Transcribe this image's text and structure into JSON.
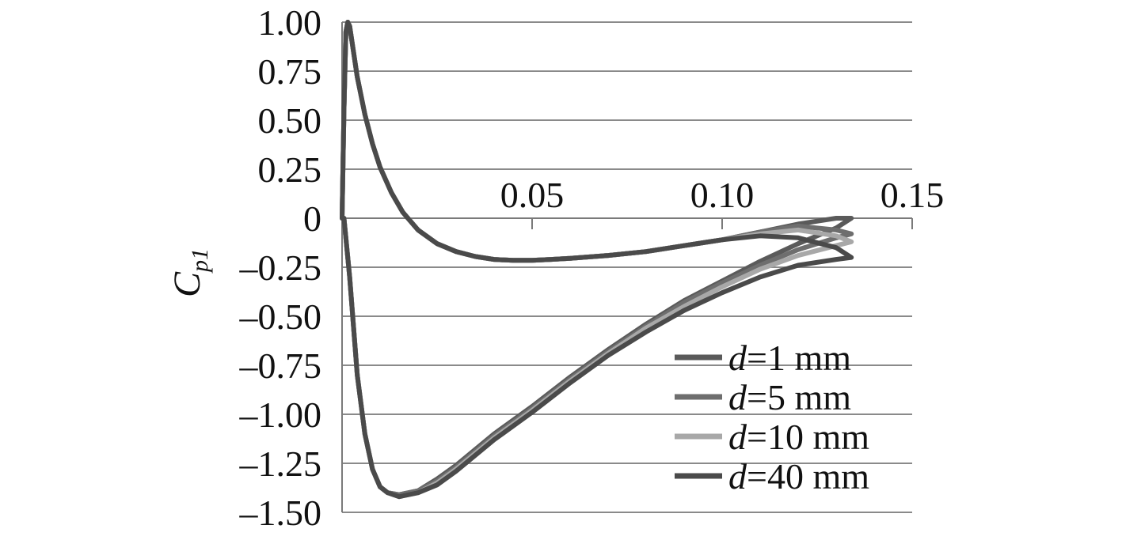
{
  "chart_data": {
    "type": "line",
    "title": "",
    "xlabel": "",
    "ylabel": "C",
    "ylabel_subscript": "p1",
    "xlim": [
      0,
      0.15
    ],
    "ylim": [
      -1.5,
      1.0
    ],
    "x_ticks": [
      {
        "value": 0.05,
        "label": "0.05"
      },
      {
        "value": 0.1,
        "label": "0.10"
      },
      {
        "value": 0.15,
        "label": "0.15"
      }
    ],
    "y_ticks": [
      {
        "value": 1.0,
        "label": "1.00"
      },
      {
        "value": 0.75,
        "label": "0.75"
      },
      {
        "value": 0.5,
        "label": "0.50"
      },
      {
        "value": 0.25,
        "label": "0.25"
      },
      {
        "value": 0.0,
        "label": "0"
      },
      {
        "value": -0.25,
        "label": "–0.25"
      },
      {
        "value": -0.5,
        "label": "–0.50"
      },
      {
        "value": -0.75,
        "label": "–0.75"
      },
      {
        "value": -1.0,
        "label": "–1.00"
      },
      {
        "value": -1.25,
        "label": "–1.25"
      },
      {
        "value": -1.5,
        "label": "–1.50"
      }
    ],
    "grid": "horizontal",
    "legend_position": "bottom-right",
    "series": [
      {
        "name_var": "d",
        "name_rest": "=1 mm",
        "color": "#5a5a5a",
        "x": [
          0.0,
          0.0005,
          0.001,
          0.0015,
          0.002,
          0.003,
          0.004,
          0.006,
          0.008,
          0.01,
          0.013,
          0.016,
          0.02,
          0.025,
          0.03,
          0.035,
          0.04,
          0.045,
          0.05,
          0.055,
          0.06,
          0.07,
          0.08,
          0.09,
          0.1,
          0.11,
          0.12,
          0.13,
          0.134,
          0.13,
          0.12,
          0.11,
          0.1,
          0.09,
          0.08,
          0.07,
          0.06,
          0.05,
          0.04,
          0.03,
          0.025,
          0.02,
          0.015,
          0.012,
          0.01,
          0.008,
          0.006,
          0.004,
          0.003,
          0.002,
          0.001,
          0.0005,
          0.0
        ],
        "y": [
          0.0,
          0.55,
          0.95,
          1.0,
          0.98,
          0.85,
          0.72,
          0.53,
          0.38,
          0.26,
          0.13,
          0.03,
          -0.06,
          -0.13,
          -0.17,
          -0.195,
          -0.21,
          -0.215,
          -0.215,
          -0.21,
          -0.205,
          -0.19,
          -0.17,
          -0.14,
          -0.11,
          -0.07,
          -0.03,
          0.0,
          0.0,
          -0.05,
          -0.13,
          -0.22,
          -0.32,
          -0.42,
          -0.54,
          -0.67,
          -0.81,
          -0.96,
          -1.1,
          -1.26,
          -1.33,
          -1.39,
          -1.41,
          -1.4,
          -1.37,
          -1.28,
          -1.1,
          -0.8,
          -0.55,
          -0.3,
          -0.1,
          0.0,
          0.0
        ]
      },
      {
        "name_var": "d",
        "name_rest": "=5 mm",
        "color": "#6e6e6e",
        "x": [
          0.0,
          0.0005,
          0.001,
          0.0015,
          0.002,
          0.003,
          0.004,
          0.006,
          0.008,
          0.01,
          0.013,
          0.016,
          0.02,
          0.025,
          0.03,
          0.035,
          0.04,
          0.045,
          0.05,
          0.055,
          0.06,
          0.07,
          0.08,
          0.09,
          0.1,
          0.11,
          0.12,
          0.13,
          0.134,
          0.13,
          0.12,
          0.11,
          0.1,
          0.09,
          0.08,
          0.07,
          0.06,
          0.05,
          0.04,
          0.03,
          0.025,
          0.02,
          0.015,
          0.012,
          0.01,
          0.008,
          0.006,
          0.004,
          0.003,
          0.002,
          0.001,
          0.0005,
          0.0
        ],
        "y": [
          0.0,
          0.55,
          0.95,
          1.0,
          0.98,
          0.85,
          0.72,
          0.53,
          0.38,
          0.26,
          0.13,
          0.03,
          -0.06,
          -0.13,
          -0.17,
          -0.195,
          -0.21,
          -0.215,
          -0.215,
          -0.21,
          -0.205,
          -0.19,
          -0.17,
          -0.14,
          -0.11,
          -0.07,
          -0.04,
          -0.06,
          -0.08,
          -0.1,
          -0.16,
          -0.24,
          -0.33,
          -0.43,
          -0.55,
          -0.68,
          -0.82,
          -0.97,
          -1.11,
          -1.27,
          -1.34,
          -1.39,
          -1.41,
          -1.4,
          -1.37,
          -1.28,
          -1.1,
          -0.8,
          -0.55,
          -0.3,
          -0.1,
          0.0,
          0.0
        ]
      },
      {
        "name_var": "d",
        "name_rest": "=10 mm",
        "color": "#a8a8a8",
        "x": [
          0.0,
          0.0005,
          0.001,
          0.0015,
          0.002,
          0.003,
          0.004,
          0.006,
          0.008,
          0.01,
          0.013,
          0.016,
          0.02,
          0.025,
          0.03,
          0.035,
          0.04,
          0.045,
          0.05,
          0.055,
          0.06,
          0.07,
          0.08,
          0.09,
          0.1,
          0.11,
          0.12,
          0.13,
          0.134,
          0.13,
          0.12,
          0.11,
          0.1,
          0.09,
          0.08,
          0.07,
          0.06,
          0.05,
          0.04,
          0.03,
          0.025,
          0.02,
          0.015,
          0.012,
          0.01,
          0.008,
          0.006,
          0.004,
          0.003,
          0.002,
          0.001,
          0.0005,
          0.0
        ],
        "y": [
          0.0,
          0.55,
          0.95,
          1.0,
          0.98,
          0.85,
          0.72,
          0.53,
          0.38,
          0.26,
          0.13,
          0.03,
          -0.06,
          -0.13,
          -0.17,
          -0.195,
          -0.21,
          -0.215,
          -0.215,
          -0.21,
          -0.205,
          -0.19,
          -0.17,
          -0.14,
          -0.11,
          -0.08,
          -0.06,
          -0.09,
          -0.12,
          -0.14,
          -0.19,
          -0.26,
          -0.35,
          -0.45,
          -0.56,
          -0.69,
          -0.83,
          -0.98,
          -1.12,
          -1.28,
          -1.35,
          -1.4,
          -1.42,
          -1.4,
          -1.37,
          -1.28,
          -1.1,
          -0.8,
          -0.55,
          -0.3,
          -0.1,
          0.0,
          0.0
        ]
      },
      {
        "name_var": "d",
        "name_rest": "=40 mm",
        "color": "#4a4a4a",
        "x": [
          0.0,
          0.0005,
          0.001,
          0.0015,
          0.002,
          0.003,
          0.004,
          0.006,
          0.008,
          0.01,
          0.013,
          0.016,
          0.02,
          0.025,
          0.03,
          0.035,
          0.04,
          0.045,
          0.05,
          0.055,
          0.06,
          0.07,
          0.08,
          0.09,
          0.1,
          0.11,
          0.12,
          0.13,
          0.134,
          0.13,
          0.12,
          0.11,
          0.1,
          0.09,
          0.08,
          0.07,
          0.06,
          0.05,
          0.04,
          0.03,
          0.025,
          0.02,
          0.015,
          0.012,
          0.01,
          0.008,
          0.006,
          0.004,
          0.003,
          0.002,
          0.001,
          0.0005,
          0.0
        ],
        "y": [
          0.0,
          0.55,
          0.95,
          1.0,
          0.98,
          0.85,
          0.72,
          0.53,
          0.38,
          0.26,
          0.13,
          0.03,
          -0.06,
          -0.13,
          -0.17,
          -0.195,
          -0.21,
          -0.215,
          -0.215,
          -0.21,
          -0.205,
          -0.19,
          -0.17,
          -0.14,
          -0.11,
          -0.09,
          -0.1,
          -0.15,
          -0.2,
          -0.21,
          -0.24,
          -0.3,
          -0.38,
          -0.47,
          -0.58,
          -0.7,
          -0.84,
          -0.99,
          -1.13,
          -1.29,
          -1.36,
          -1.4,
          -1.42,
          -1.4,
          -1.37,
          -1.28,
          -1.1,
          -0.8,
          -0.55,
          -0.3,
          -0.1,
          0.0,
          0.0
        ]
      }
    ]
  }
}
